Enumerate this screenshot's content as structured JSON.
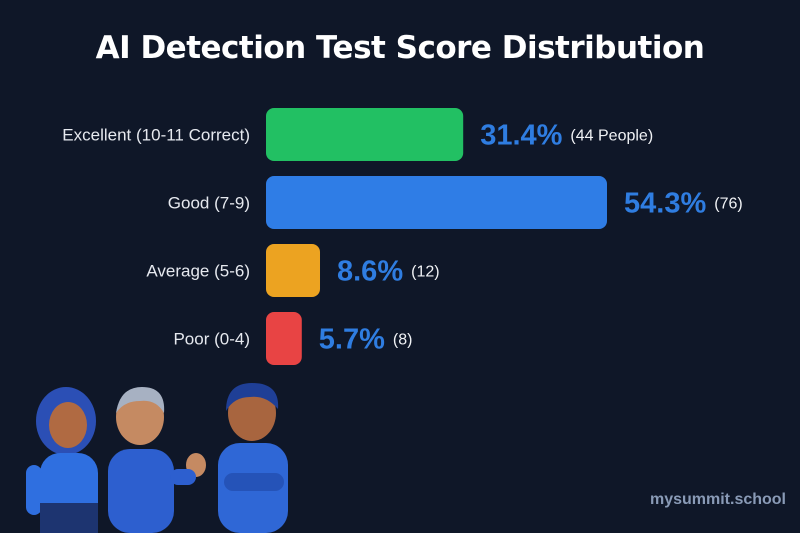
{
  "chart_data": {
    "type": "bar",
    "orientation": "horizontal",
    "title": "AI Detection Test Score Distribution",
    "categories": [
      "Excellent (10-11 Correct)",
      "Good (7-9)",
      "Average (5-6)",
      "Poor (0-4)"
    ],
    "values": [
      31.4,
      54.3,
      8.6,
      5.7
    ],
    "value_labels": [
      "31.4%",
      "54.3%",
      "8.6%",
      "5.7%"
    ],
    "count_labels": [
      "(44 People)",
      "(76)",
      "(12)",
      "(8)"
    ],
    "colors": [
      "#22c063",
      "#2f7de6",
      "#eca321",
      "#e84444"
    ],
    "value_label_color": "#2f7de1",
    "grid": false,
    "legend": "none"
  },
  "watermark": "mysummit.school"
}
